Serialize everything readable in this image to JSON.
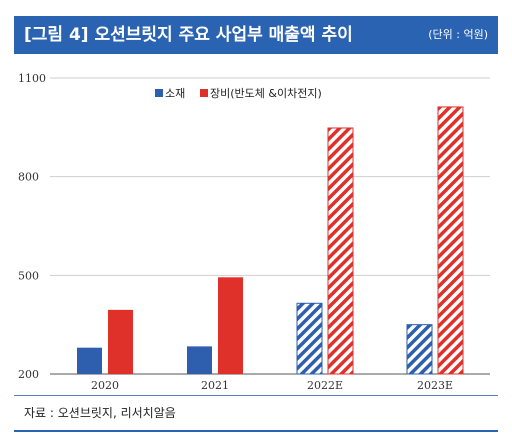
{
  "header": {
    "title": "[그림 4] 오션브릿지 주요 사업부 매출액 추이",
    "unit": "(단위 : 억원)"
  },
  "source": "자료 : 오션브릿지, 리서치알음",
  "colors": {
    "header_bg": "#2a63b2",
    "materials": "#2d5fae",
    "equipment": "#e0302a"
  },
  "chart_data": {
    "type": "bar",
    "title": "",
    "xlabel": "",
    "ylabel": "",
    "categories": [
      "2020",
      "2021",
      "2022E",
      "2023E"
    ],
    "estimated": [
      false,
      false,
      true,
      true
    ],
    "series": [
      {
        "name": "소재",
        "values": [
          280,
          284,
          415,
          350
        ],
        "color": "#2d5fae"
      },
      {
        "name": "장비(반도체 &이차전지)",
        "values": [
          395,
          494,
          948,
          1012
        ],
        "color": "#e0302a"
      }
    ],
    "ylim": [
      200,
      1100
    ],
    "yticks": [
      200,
      500,
      800,
      1100
    ],
    "grid": true,
    "legend": "top"
  }
}
